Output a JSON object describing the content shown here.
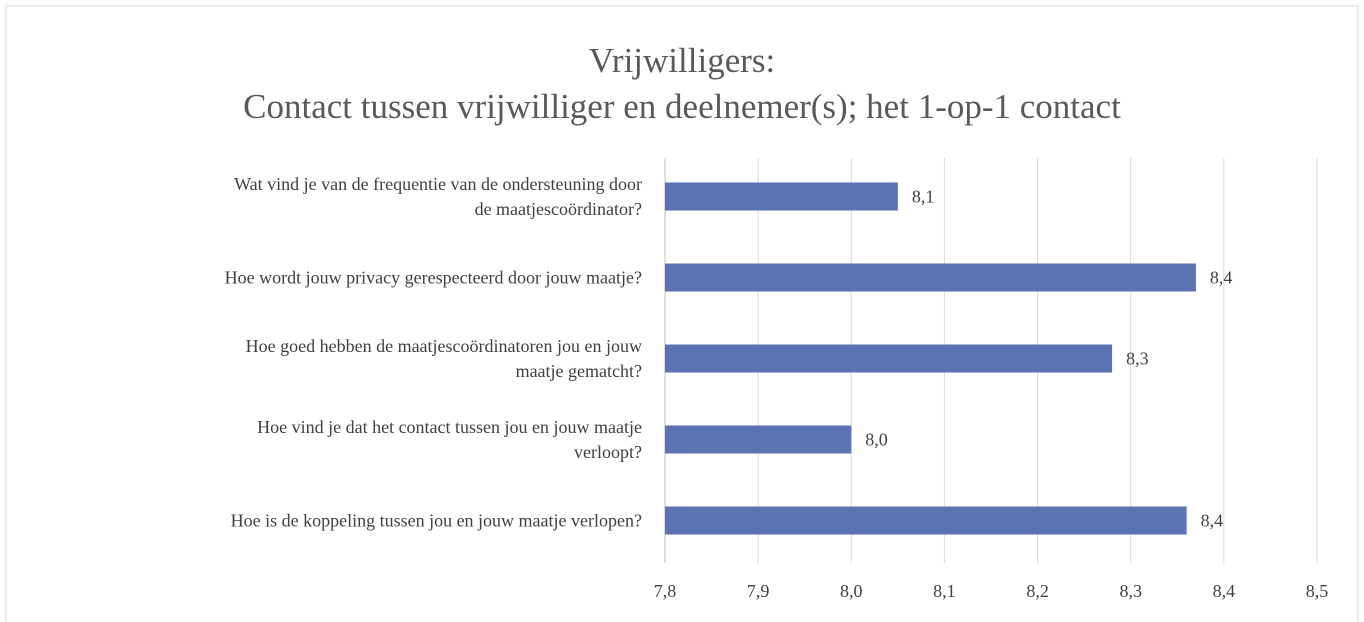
{
  "chart_data": {
    "type": "barh",
    "title": "Vrijwilligers:\nContact tussen vrijwilliger en deelnemer(s); het 1-op-1 contact",
    "categories": [
      "Wat vind je van de frequentie van de ondersteuning door\nde maatjescoördinator?",
      "Hoe wordt jouw privacy gerespecteerd door jouw maatje?",
      "Hoe goed hebben de maatjescoördinatoren jou en jouw\nmaatje gematcht?",
      "Hoe vind je dat het contact tussen jou en jouw maatje\nverloopt?",
      "Hoe is de koppeling tussen jou en jouw maatje verlopen?"
    ],
    "values": [
      8.05,
      8.37,
      8.28,
      8.0,
      8.36
    ],
    "value_labels": [
      "8,1",
      "8,4",
      "8,3",
      "8,0",
      "8,4"
    ],
    "color": "#5b72b3",
    "xlim": [
      7.8,
      8.5
    ],
    "xticks": [
      {
        "value": 7.8,
        "label": "7,8"
      },
      {
        "value": 7.9,
        "label": "7,9"
      },
      {
        "value": 8.0,
        "label": "8,0"
      },
      {
        "value": 8.1,
        "label": "8,1"
      },
      {
        "value": 8.2,
        "label": "8,2"
      },
      {
        "value": 8.3,
        "label": "8,3"
      },
      {
        "value": 8.4,
        "label": "8,4"
      },
      {
        "value": 8.5,
        "label": "8,5"
      }
    ],
    "grid": true
  }
}
